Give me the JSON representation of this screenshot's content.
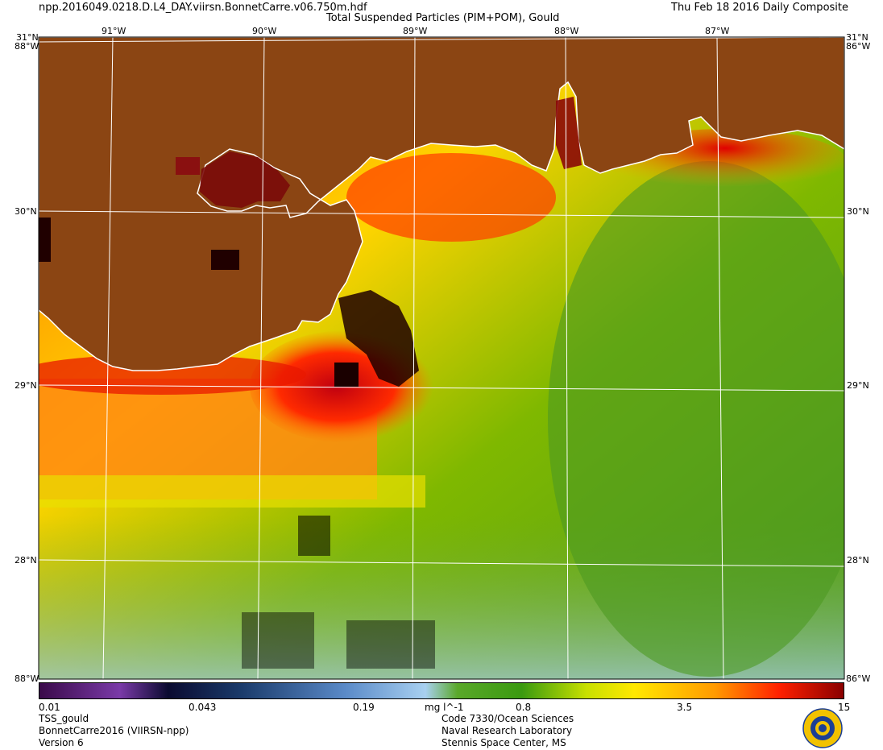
{
  "header": {
    "filename": "npp.2016049.0218.D.L4_DAY.viirsn.BonnetCarre.v06.750m.hdf",
    "product_title": "Total Suspended Particles (PIM+POM), Gould",
    "date": "Thu Feb 18 2016 Daily Composite"
  },
  "map": {
    "lon_labels": [
      "91°W",
      "90°W",
      "89°W",
      "88°W",
      "87°W"
    ],
    "lat_labels": [
      "31°N",
      "30°N",
      "29°N",
      "28°N"
    ],
    "corner_labels": {
      "top_left": "31°N",
      "top_right": "31°N",
      "side_top_left": "88°W",
      "side_top_right": "86°W",
      "bottom_left": "88°W",
      "bottom_right": "86°W"
    },
    "colors": {
      "land": "#8B4513",
      "coast": "#ffffff",
      "grid": "#ffffff"
    }
  },
  "colorbar": {
    "tick_labels": [
      "0.01",
      "0.043",
      "0.19",
      "0.8",
      "3.5",
      "15"
    ],
    "units": "mg l^-1",
    "scale": "log"
  },
  "footer": {
    "left": [
      "TSS_gould",
      "BonnetCarre2016 (VIIRSN-npp)",
      "Version 6"
    ],
    "center": [
      "Code 7330/Ocean Sciences",
      "Naval Research Laboratory",
      "Stennis Space Center, MS"
    ]
  },
  "logo": {
    "icon": "nrl-seal-icon",
    "colors": {
      "ring": "#f2c200",
      "center": "#1c3f94"
    }
  }
}
